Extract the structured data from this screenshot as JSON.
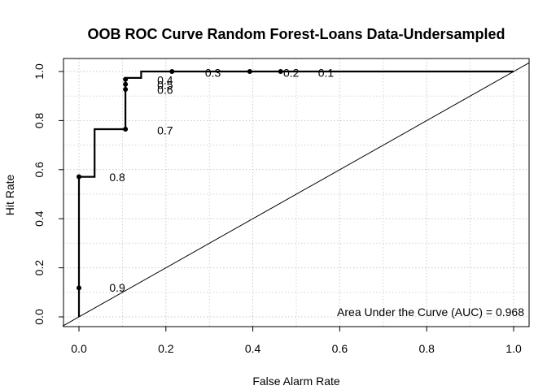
{
  "chart_data": {
    "type": "line",
    "title": "OOB ROC Curve Random Forest-Loans Data-Undersampled",
    "xlabel": "False Alarm Rate",
    "ylabel": "Hit Rate",
    "xlim": [
      0,
      1
    ],
    "ylim": [
      0,
      1
    ],
    "xticks": [
      "0.0",
      "0.2",
      "0.4",
      "0.6",
      "0.8",
      "1.0"
    ],
    "yticks": [
      "0.0",
      "0.2",
      "0.4",
      "0.6",
      "0.8",
      "1.0"
    ],
    "grid": true,
    "series": [
      {
        "x": [
          0,
          0,
          0,
          0,
          0.036,
          0.036,
          0.107,
          0.107,
          0.107,
          0.107,
          0.107,
          0.143,
          0.143,
          0.214,
          0.214,
          0.393,
          0.464,
          0.5,
          1.0
        ],
        "y": [
          0,
          0.118,
          0.571,
          0.571,
          0.571,
          0.765,
          0.765,
          0.927,
          0.948,
          0.968,
          0.974,
          0.974,
          1.0,
          1.0,
          1.0,
          1.0,
          1.0,
          1.0,
          1.0
        ]
      }
    ],
    "reference_line": {
      "x": [
        0,
        1
      ],
      "y": [
        0,
        1
      ]
    },
    "markers": [
      {
        "x": 0,
        "y": 0.118
      },
      {
        "x": 0,
        "y": 0.571
      },
      {
        "x": 0.107,
        "y": 0.765
      },
      {
        "x": 0.107,
        "y": 0.927
      },
      {
        "x": 0.107,
        "y": 0.948
      },
      {
        "x": 0.107,
        "y": 0.968
      },
      {
        "x": 0.214,
        "y": 1.0
      },
      {
        "x": 0.393,
        "y": 1.0
      },
      {
        "x": 0.464,
        "y": 1.0
      }
    ],
    "threshold_labels": [
      {
        "text": "0.9",
        "x": 0.07,
        "y": 0.12
      },
      {
        "text": "0.8",
        "x": 0.07,
        "y": 0.57
      },
      {
        "text": "0.7",
        "x": 0.18,
        "y": 0.76
      },
      {
        "text": "0.6",
        "x": 0.18,
        "y": 0.925
      },
      {
        "text": "0.5",
        "x": 0.18,
        "y": 0.945
      },
      {
        "text": "0.4",
        "x": 0.18,
        "y": 0.965
      },
      {
        "text": "0.3",
        "x": 0.29,
        "y": 0.995
      },
      {
        "text": "0.2",
        "x": 0.47,
        "y": 0.995
      },
      {
        "text": "0.1",
        "x": 0.55,
        "y": 0.995
      }
    ],
    "annotation": "Area Under the Curve (AUC) = 0.968"
  }
}
